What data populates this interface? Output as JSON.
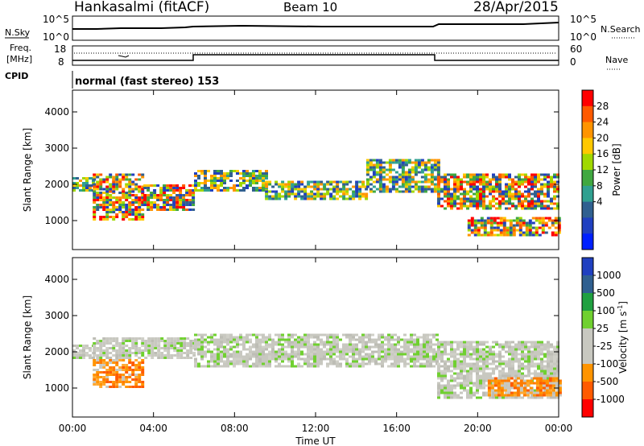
{
  "header": {
    "station": "Hankasalmi (fitACF)",
    "beam": "Beam 10",
    "date": "28/Apr/2015"
  },
  "noise_panel": {
    "left_label": "N.Sky",
    "right_label": "N.Search",
    "left_ticks": [
      "10^5",
      "10^0"
    ],
    "right_ticks": [
      "10^5",
      "10^0"
    ]
  },
  "freq_panel": {
    "label_line1": "Freq.",
    "label_line2": "[MHz]",
    "left_ticks": [
      "18",
      "8"
    ],
    "right_ticks": [
      "60",
      "0"
    ],
    "right_label": "Nave"
  },
  "cpid": {
    "label": "CPID",
    "value": "normal (fast stereo) 153"
  },
  "chart_data": [
    {
      "type": "heatmap",
      "parameter": "Power",
      "ylabel": "Slant Range [km]",
      "ylim": [
        200,
        4600
      ],
      "yticks": [
        "4000",
        "3000",
        "2000",
        "1000"
      ],
      "xlim": [
        "00:00",
        "24:00"
      ],
      "colorbar": {
        "label": "Power [dB]",
        "ticks": [
          "28",
          "24",
          "20",
          "16",
          "12",
          "8",
          "4"
        ],
        "colors": [
          "#ff0000",
          "#ff5a00",
          "#ff9400",
          "#ffc800",
          "#a0d800",
          "#40a840",
          "#30a090",
          "#306090",
          "#2040c0",
          "#0020ff"
        ]
      },
      "echo_bands": [
        {
          "start_h": 0.0,
          "end_h": 1.0,
          "ranges_km": [
            [
              1800,
              2200
            ]
          ],
          "level": "medium"
        },
        {
          "start_h": 1.0,
          "end_h": 3.5,
          "ranges_km": [
            [
              1000,
              1800
            ],
            [
              1800,
              2300
            ]
          ],
          "level": "high"
        },
        {
          "start_h": 3.5,
          "end_h": 6.0,
          "ranges_km": [
            [
              1300,
              2000
            ]
          ],
          "level": "high"
        },
        {
          "start_h": 6.0,
          "end_h": 9.5,
          "ranges_km": [
            [
              1800,
              2400
            ]
          ],
          "level": "medium"
        },
        {
          "start_h": 9.5,
          "end_h": 14.5,
          "ranges_km": [
            [
              1600,
              2100
            ]
          ],
          "level": "medium"
        },
        {
          "start_h": 14.5,
          "end_h": 18.0,
          "ranges_km": [
            [
              1800,
              2700
            ]
          ],
          "level": "medium"
        },
        {
          "start_h": 18.0,
          "end_h": 24.0,
          "ranges_km": [
            [
              1300,
              2300
            ]
          ],
          "level": "high"
        },
        {
          "start_h": 19.5,
          "end_h": 24.0,
          "ranges_km": [
            [
              600,
              1100
            ]
          ],
          "level": "high"
        }
      ]
    },
    {
      "type": "heatmap",
      "parameter": "Velocity",
      "ylabel": "Slant Range [km]",
      "ylim": [
        200,
        4600
      ],
      "yticks": [
        "4000",
        "3000",
        "2000",
        "1000"
      ],
      "xlim": [
        "00:00",
        "24:00"
      ],
      "xticks": [
        "00:00",
        "04:00",
        "08:00",
        "12:00",
        "16:00",
        "20:00",
        "00:00"
      ],
      "xlabel": "Time UT",
      "colorbar": {
        "label_main": "Velocity",
        "label_unit": "[m s",
        "label_sup": "-1",
        "label_close": "]",
        "ticks": [
          "1000",
          "500",
          "100",
          "25",
          "-25",
          "-100",
          "-500",
          "-1000"
        ],
        "colors": [
          "#2040c0",
          "#306090",
          "#20a040",
          "#70d030",
          "#c8c8c0",
          "#c8c8c0",
          "#ff9400",
          "#ff5a00",
          "#ff0000"
        ]
      },
      "echo_bands": [
        {
          "start_h": 0.0,
          "end_h": 1.0,
          "ranges_km": [
            [
              1800,
              2200
            ]
          ],
          "level": "grey"
        },
        {
          "start_h": 1.0,
          "end_h": 3.5,
          "ranges_km": [
            [
              1000,
              1800
            ]
          ],
          "level": "orange"
        },
        {
          "start_h": 1.0,
          "end_h": 6.0,
          "ranges_km": [
            [
              1800,
              2400
            ]
          ],
          "level": "grey"
        },
        {
          "start_h": 6.0,
          "end_h": 18.0,
          "ranges_km": [
            [
              1600,
              2500
            ]
          ],
          "level": "grey"
        },
        {
          "start_h": 18.0,
          "end_h": 24.0,
          "ranges_km": [
            [
              700,
              2300
            ]
          ],
          "level": "grey"
        },
        {
          "start_h": 20.5,
          "end_h": 24.0,
          "ranges_km": [
            [
              800,
              1300
            ]
          ],
          "level": "orange"
        }
      ]
    }
  ]
}
